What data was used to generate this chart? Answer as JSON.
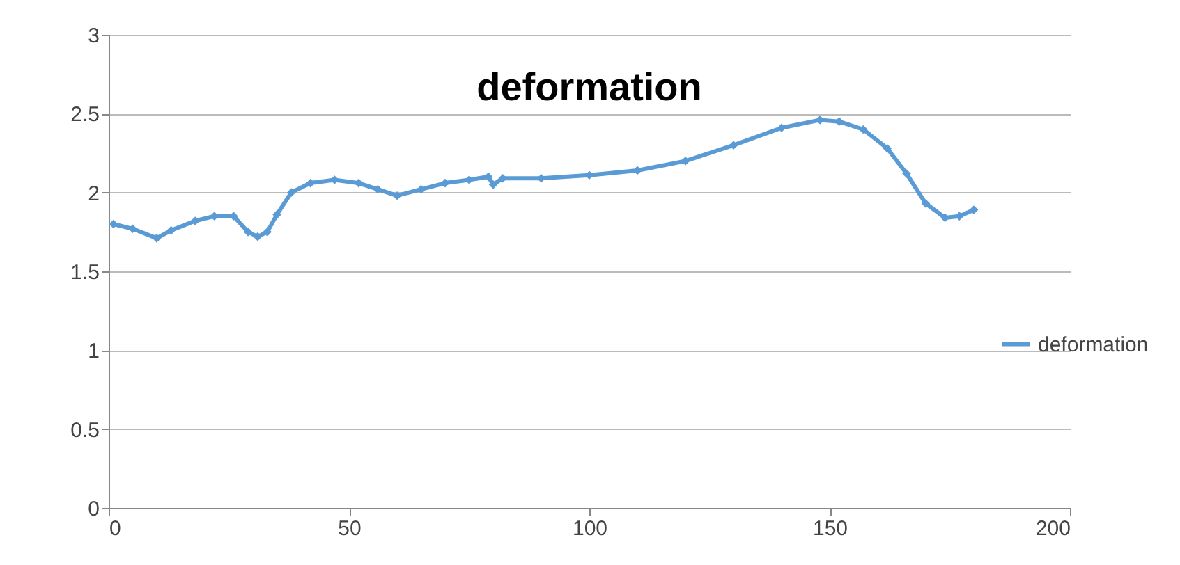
{
  "chart_data": {
    "type": "line",
    "title": "deformation",
    "x": [
      1,
      5,
      10,
      13,
      18,
      22,
      26,
      29,
      31,
      33,
      35,
      38,
      42,
      47,
      52,
      56,
      60,
      65,
      70,
      75,
      79,
      80,
      82,
      90,
      100,
      110,
      120,
      130,
      140,
      148,
      152,
      157,
      162,
      166,
      170,
      174,
      177,
      180
    ],
    "series": [
      {
        "name": "deformation",
        "color": "#5b9bd5",
        "values": [
          1.8,
          1.77,
          1.71,
          1.76,
          1.82,
          1.85,
          1.85,
          1.75,
          1.72,
          1.75,
          1.86,
          2.0,
          2.06,
          2.08,
          2.06,
          2.02,
          1.98,
          2.02,
          2.06,
          2.08,
          2.1,
          2.05,
          2.09,
          2.09,
          2.11,
          2.14,
          2.2,
          2.3,
          2.41,
          2.46,
          2.45,
          2.4,
          2.28,
          2.12,
          1.93,
          1.84,
          1.85,
          1.89
        ]
      }
    ],
    "xlim": [
      0,
      200
    ],
    "xticks": [
      0,
      50,
      100,
      150,
      200
    ],
    "ylim": [
      0,
      3
    ],
    "yticks": [
      0,
      0.5,
      1,
      1.5,
      2,
      2.5,
      3
    ],
    "grid": "y",
    "legend": "right",
    "marker": "diamond",
    "line_style": "solid"
  }
}
